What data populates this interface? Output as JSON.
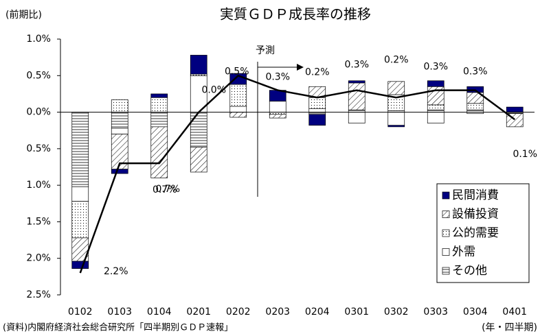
{
  "chart_data": {
    "type": "stacked_bar_line",
    "title": "実質ＧＤＰ成長率の推移",
    "y_label": "(前期比)",
    "x_label": "(年・四半期)",
    "source": "(資料)内閣府経済社会総合研究所「四半期別ＧＤＰ速報」",
    "annotation": "予測",
    "categories": [
      "0102",
      "0103",
      "0104",
      "0201",
      "0202",
      "0203",
      "0204",
      "0301",
      "0302",
      "0303",
      "0304",
      "0401"
    ],
    "series": [
      {
        "name": "民間消費",
        "color": "#000080",
        "pattern": "solid",
        "values": [
          -0.1,
          -0.06,
          0.05,
          0.26,
          0.15,
          0.15,
          -0.15,
          0.03,
          -0.02,
          0.08,
          0.08,
          0.07
        ]
      },
      {
        "name": "設備投資",
        "color": "#000000",
        "pattern": "hatch",
        "values": [
          -0.32,
          -0.48,
          -0.7,
          -0.34,
          -0.07,
          -0.05,
          0.15,
          0.37,
          0.18,
          0.25,
          0.15,
          -0.18
        ]
      },
      {
        "name": "公的需要",
        "color": "#000000",
        "pattern": "dots",
        "values": [
          -0.5,
          0.17,
          0.2,
          0.02,
          0.3,
          -0.03,
          0.15,
          0.0,
          0.22,
          0.07,
          0.09,
          0.0
        ]
      },
      {
        "name": "外需",
        "color": "#000000",
        "pattern": "none",
        "values": [
          -0.2,
          -0.08,
          0.0,
          0.5,
          0.08,
          0.15,
          0.05,
          -0.15,
          -0.18,
          -0.15,
          -0.02,
          0.0
        ]
      },
      {
        "name": "その他",
        "color": "#000000",
        "pattern": "hlines",
        "values": [
          -1.02,
          -0.22,
          -0.2,
          -0.48,
          0.0,
          0.0,
          -0.03,
          0.03,
          0.02,
          0.03,
          0.03,
          -0.02
        ]
      }
    ],
    "line": {
      "color": "#000000",
      "values": [
        -2.2,
        -0.7,
        -0.7,
        0.0,
        0.5,
        0.3,
        0.2,
        0.3,
        0.2,
        0.3,
        0.3,
        -0.1
      ],
      "value_labels": [
        "2.2%",
        "0.7%",
        "0.7%",
        "0.0%",
        "0.5%",
        "0.3%",
        "0.2%",
        "0.3%",
        "0.2%",
        "0.3%",
        "0.3%",
        "0.1%"
      ]
    },
    "ylim": [
      -2.5,
      1.0
    ],
    "yticks": [
      {
        "value": 1.0,
        "label": "1.0%"
      },
      {
        "value": 0.5,
        "label": "0.5%"
      },
      {
        "value": 0,
        "label": "0.0%"
      },
      {
        "value": -0.5,
        "label": "0.5%"
      },
      {
        "value": -1.0,
        "label": "1.0%"
      },
      {
        "value": -1.5,
        "label": "1.5%"
      },
      {
        "value": -2.0,
        "label": "2.0%"
      },
      {
        "value": -2.5,
        "label": "2.5%"
      }
    ],
    "legend": "lower right"
  }
}
